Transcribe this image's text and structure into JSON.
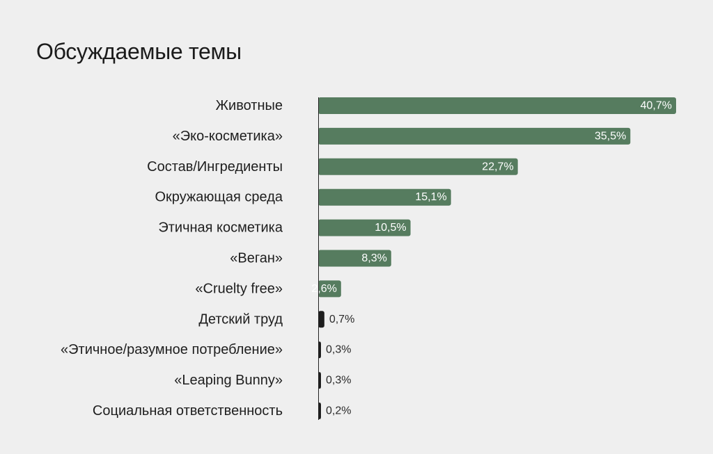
{
  "title": "Обсуждаемые темы",
  "colors": {
    "background": "#efefef",
    "bar_green": "#567c5f",
    "bar_dark": "#1e1e1e",
    "axis": "#222222",
    "label_inside": "#ffffff",
    "label_outside": "#2a2a2a",
    "text": "#1e1e1e"
  },
  "chart_data": {
    "type": "bar",
    "orientation": "horizontal",
    "title": "Обсуждаемые темы",
    "xlabel": "",
    "ylabel": "",
    "grid": false,
    "categories": [
      "Животные",
      "«Эко-косметика»",
      "Состав/Ингредиенты",
      "Окружающая среда",
      "Этичная косметика",
      "«Веган»",
      "«Cruelty free»",
      "Детский труд",
      "«Этичное/разумное потребление»",
      "«Leaping Bunny»",
      "Социальная ответственность"
    ],
    "values": [
      40.7,
      35.5,
      22.7,
      15.1,
      10.5,
      8.3,
      2.6,
      0.7,
      0.3,
      0.3,
      0.2
    ],
    "value_labels": [
      "40,7%",
      "35,5%",
      "22,7%",
      "15,1%",
      "10,5%",
      "8,3%",
      "2,6%",
      "0,7%",
      "0,3%",
      "0,3%",
      "0,2%"
    ],
    "xlim": [
      0,
      40.7
    ]
  }
}
